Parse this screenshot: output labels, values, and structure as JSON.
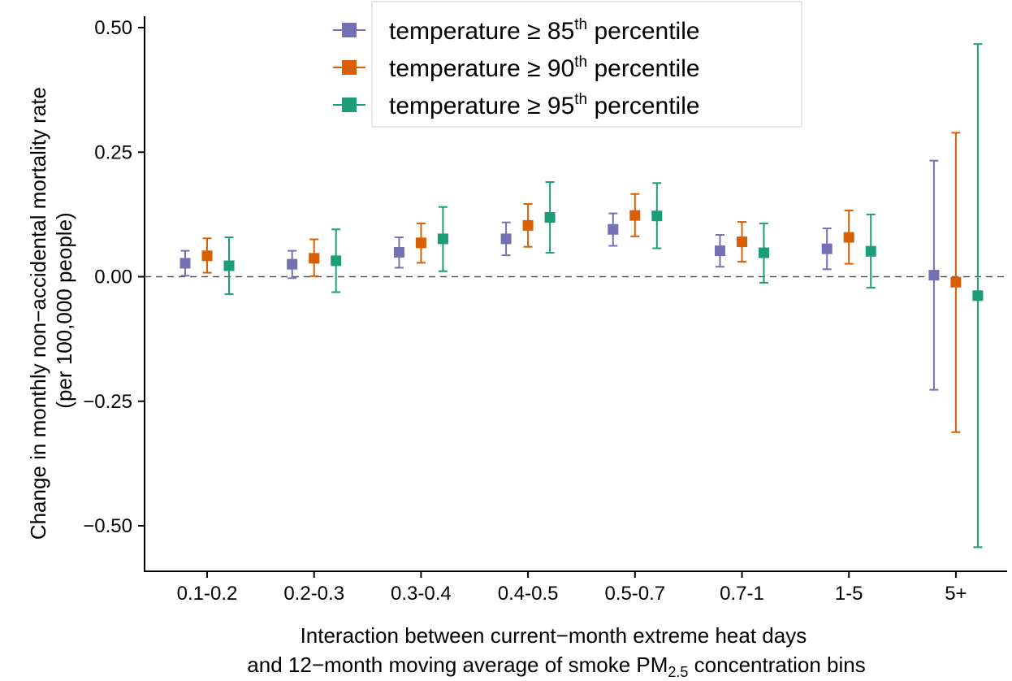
{
  "chart_data": {
    "type": "scatter",
    "categories": [
      "0.1-0.2",
      "0.2-0.3",
      "0.3-0.4",
      "0.4-0.5",
      "0.5-0.7",
      "0.7-1",
      "1-5",
      "5+"
    ],
    "ylim": [
      -0.58,
      0.51
    ],
    "yticks": [
      0.5,
      0.25,
      0.0,
      -0.25,
      -0.5
    ],
    "ytick_labels": [
      "0.50",
      "0.25",
      "0.00",
      "−0.25",
      "−0.50"
    ],
    "reference_line": 0,
    "ylabel_line1": "Change in monthly non−accidental mortality rate",
    "ylabel_line2": "(per 100,000 people)",
    "xlabel_line1": "Interaction between current−month extreme heat days",
    "xlabel_line2_pre": "and 12−month moving average of smoke PM",
    "xlabel_line2_sub": "2.5",
    "xlabel_line2_post": " concentration bins",
    "legend_placement": "top-center",
    "series": [
      {
        "name_pre": "temperature ≥ 85",
        "name_sup": "th",
        "name_post": " percentile",
        "color": "#7570b3",
        "estimate": [
          0.027,
          0.025,
          0.049,
          0.076,
          0.095,
          0.052,
          0.056,
          0.003
        ],
        "lower": [
          0.002,
          -0.003,
          0.018,
          0.043,
          0.062,
          0.02,
          0.015,
          -0.227
        ],
        "upper": [
          0.052,
          0.052,
          0.079,
          0.109,
          0.127,
          0.084,
          0.097,
          0.233
        ]
      },
      {
        "name_pre": "temperature ≥ 90",
        "name_sup": "th",
        "name_post": " percentile",
        "color": "#d95f02",
        "estimate": [
          0.042,
          0.037,
          0.068,
          0.103,
          0.123,
          0.07,
          0.079,
          -0.011
        ],
        "lower": [
          0.008,
          0.001,
          0.028,
          0.06,
          0.081,
          0.03,
          0.026,
          -0.312
        ],
        "upper": [
          0.077,
          0.075,
          0.107,
          0.146,
          0.166,
          0.11,
          0.133,
          0.289
        ]
      },
      {
        "name_pre": "temperature ≥ 95",
        "name_sup": "th",
        "name_post": " percentile",
        "color": "#1b9e77",
        "estimate": [
          0.022,
          0.032,
          0.076,
          0.119,
          0.122,
          0.048,
          0.051,
          -0.038
        ],
        "lower": [
          -0.035,
          -0.031,
          0.011,
          0.048,
          0.057,
          -0.012,
          -0.022,
          -0.543
        ],
        "upper": [
          0.079,
          0.095,
          0.14,
          0.19,
          0.188,
          0.107,
          0.125,
          0.467
        ]
      }
    ]
  }
}
